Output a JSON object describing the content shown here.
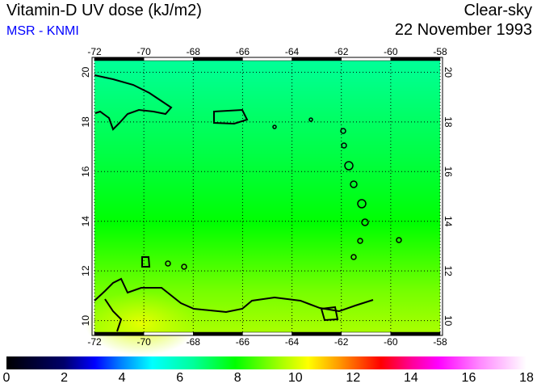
{
  "header": {
    "title": "Vitamin-D UV dose (kJ/m2)",
    "source": "MSR - KNMI",
    "condition": "Clear-sky",
    "date": "22 November 1993"
  },
  "map": {
    "lon_labels": [
      "-72",
      "-70",
      "-68",
      "-66",
      "-64",
      "-62",
      "-60",
      "-58"
    ],
    "lat_labels": [
      "10",
      "12",
      "14",
      "16",
      "18",
      "20"
    ],
    "lon_range": [
      -72,
      -58
    ],
    "lat_range": [
      9.5,
      20.5
    ],
    "colors": {
      "north": "#00ff99",
      "mid": "#00ff00",
      "south": "#ccff00"
    }
  },
  "colorbar": {
    "labels": [
      "0",
      "2",
      "4",
      "6",
      "8",
      "10",
      "12",
      "14",
      "16",
      "18"
    ],
    "range": [
      0,
      18
    ]
  }
}
